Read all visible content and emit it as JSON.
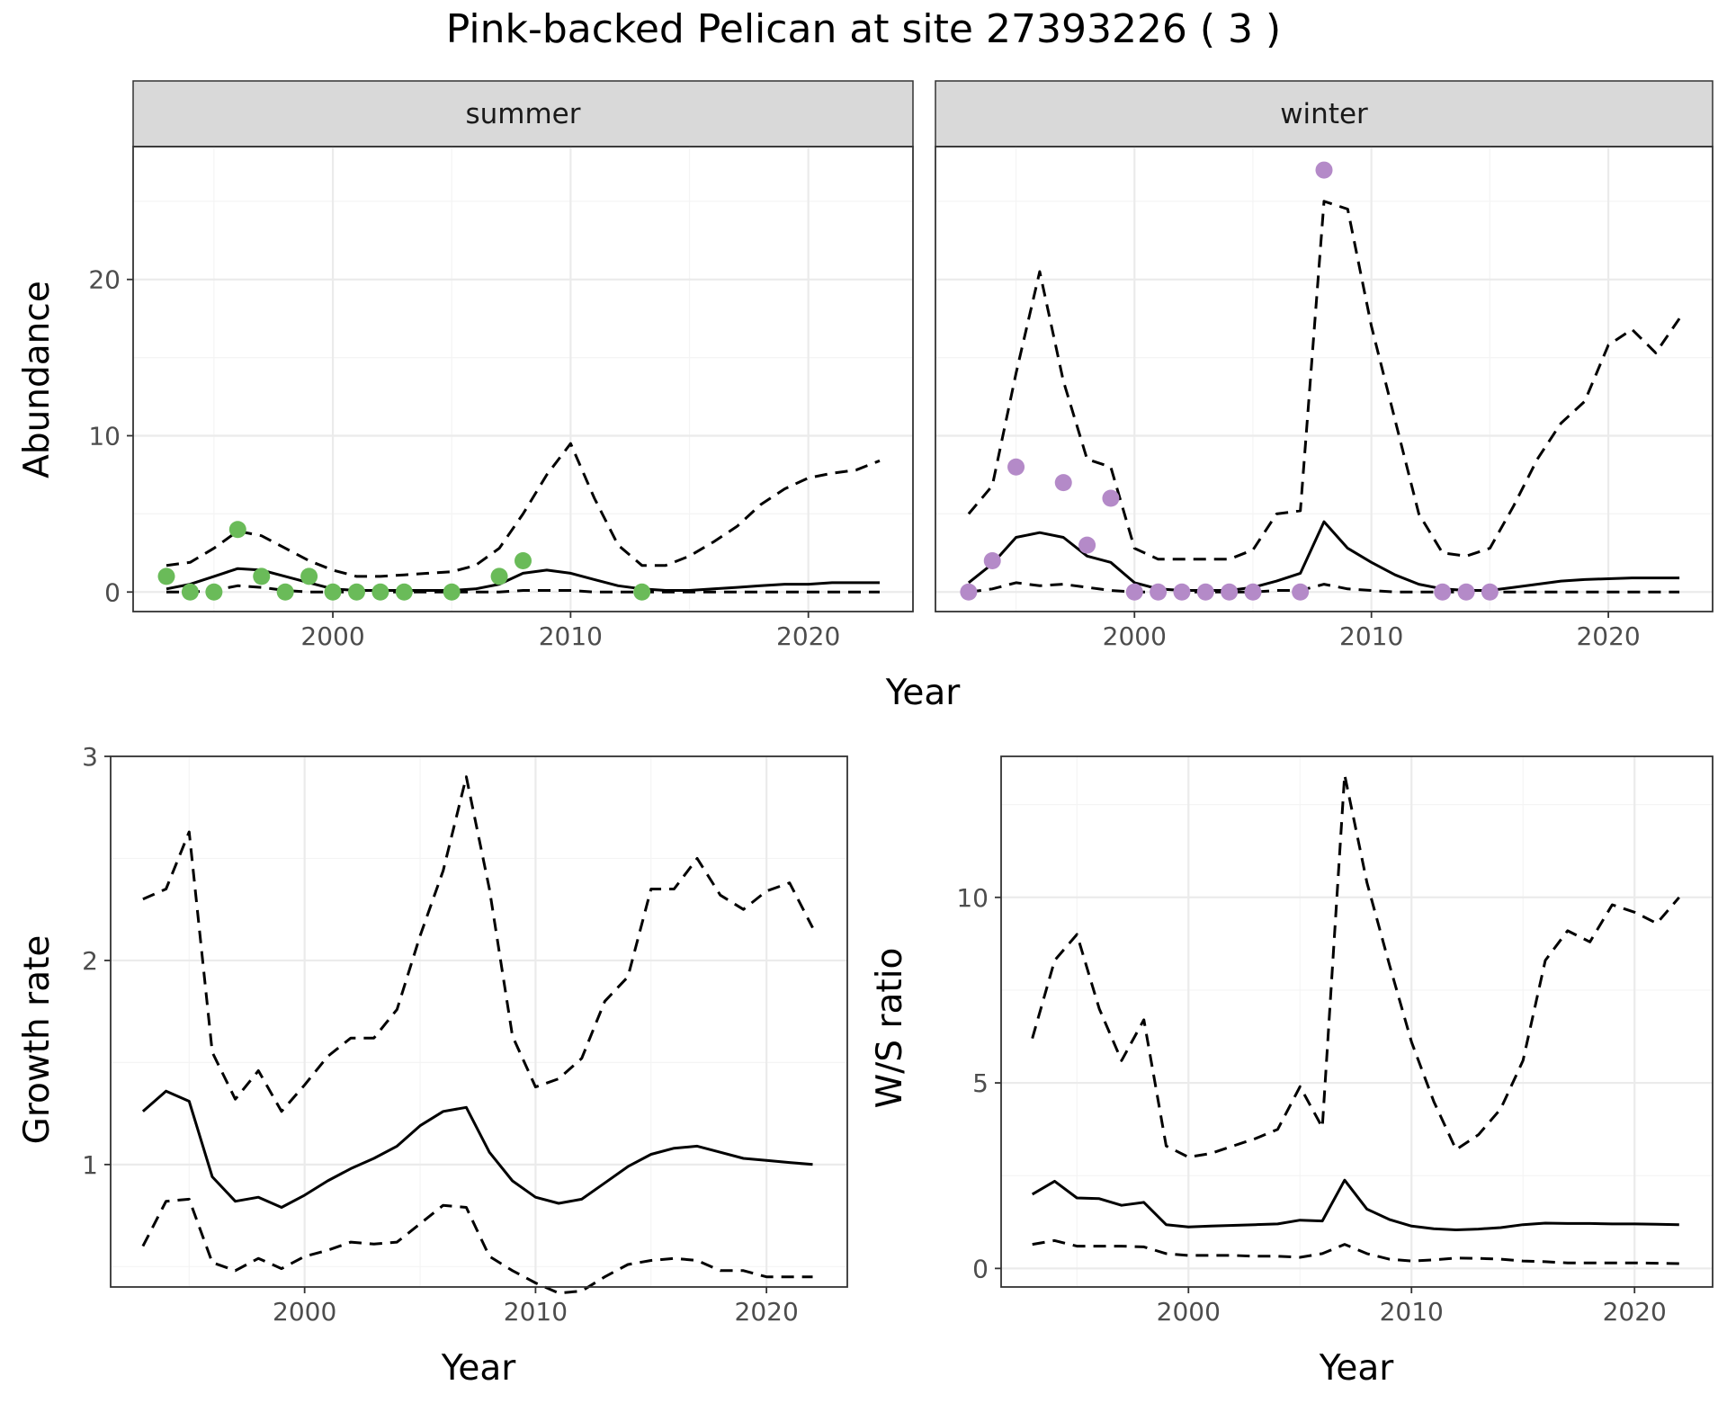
{
  "title": "Pink-backed Pelican at site 27393226 ( 3 )",
  "colors": {
    "summer_points": "#6ABB59",
    "winter_points": "#B48AC8",
    "lines": "#000000",
    "strip_bg": "#D9D9D9",
    "grid_major": "#EBEBEB",
    "grid_minor": "#F4F4F4"
  },
  "chart_data": [
    {
      "type": "line",
      "panel": "summer",
      "strip_label": "summer",
      "xlabel": "Year",
      "ylabel": "Abundance",
      "xlim": [
        1991.6,
        2024.4
      ],
      "ylim": [
        -1.25,
        28.5
      ],
      "xticks": [
        2000,
        2010,
        2020
      ],
      "yticks": [
        0,
        10,
        20
      ],
      "x": [
        1993,
        1994,
        1995,
        1996,
        1997,
        1998,
        1999,
        2000,
        2001,
        2002,
        2003,
        2004,
        2005,
        2006,
        2007,
        2008,
        2009,
        2010,
        2011,
        2012,
        2013,
        2014,
        2015,
        2016,
        2017,
        2018,
        2019,
        2020,
        2021,
        2022,
        2023
      ],
      "series": [
        {
          "style": "solid",
          "values": [
            0.2,
            0.5,
            1.0,
            1.5,
            1.4,
            1.0,
            0.6,
            0.2,
            0.1,
            0.1,
            0.1,
            0.1,
            0.1,
            0.2,
            0.5,
            1.2,
            1.4,
            1.2,
            0.8,
            0.4,
            0.2,
            0.1,
            0.1,
            0.2,
            0.3,
            0.4,
            0.5,
            0.5,
            0.6,
            0.6,
            0.6
          ]
        },
        {
          "style": "dashed",
          "values": [
            1.7,
            1.9,
            2.8,
            3.9,
            3.6,
            2.8,
            2.0,
            1.4,
            1.0,
            1.0,
            1.1,
            1.2,
            1.3,
            1.7,
            2.8,
            5.0,
            7.5,
            9.5,
            6.0,
            3.0,
            1.7,
            1.7,
            2.3,
            3.2,
            4.2,
            5.6,
            6.6,
            7.3,
            7.6,
            7.8,
            8.4
          ]
        },
        {
          "style": "dashed",
          "values": [
            0.0,
            0.0,
            0.1,
            0.4,
            0.3,
            0.1,
            0.0,
            0.0,
            0.0,
            0.0,
            0.0,
            0.0,
            0.0,
            0.0,
            0.0,
            0.1,
            0.1,
            0.1,
            0.0,
            0.0,
            0.0,
            0.0,
            0.0,
            0.0,
            0.0,
            0.0,
            0.0,
            0.0,
            0.0,
            0.0,
            0.0
          ]
        }
      ],
      "points": {
        "x": [
          1993,
          1994,
          1995,
          1996,
          1997,
          1998,
          1999,
          2000,
          2001,
          2002,
          2003,
          2005,
          2007,
          2008,
          2013
        ],
        "y": [
          1,
          0,
          0,
          4,
          1,
          0,
          1,
          0,
          0,
          0,
          0,
          0,
          1,
          2,
          0
        ]
      },
      "grid": true
    },
    {
      "type": "line",
      "panel": "winter",
      "strip_label": "winter",
      "xlabel": "Year",
      "ylabel": "Abundance",
      "xlim": [
        1991.6,
        2024.4
      ],
      "ylim": [
        -1.25,
        28.5
      ],
      "xticks": [
        2000,
        2010,
        2020
      ],
      "yticks": [
        0,
        10,
        20
      ],
      "x": [
        1993,
        1994,
        1995,
        1996,
        1997,
        1998,
        1999,
        2000,
        2001,
        2002,
        2003,
        2004,
        2005,
        2006,
        2007,
        2008,
        2009,
        2010,
        2011,
        2012,
        2013,
        2014,
        2015,
        2016,
        2017,
        2018,
        2019,
        2020,
        2021,
        2022,
        2023
      ],
      "series": [
        {
          "style": "solid",
          "values": [
            0.6,
            1.8,
            3.5,
            3.8,
            3.5,
            2.3,
            1.9,
            0.6,
            0.2,
            0.1,
            0.1,
            0.1,
            0.3,
            0.7,
            1.2,
            4.5,
            2.8,
            1.9,
            1.1,
            0.5,
            0.2,
            0.1,
            0.1,
            0.3,
            0.5,
            0.7,
            0.8,
            0.85,
            0.9,
            0.9,
            0.9
          ]
        },
        {
          "style": "dashed",
          "values": [
            5.0,
            6.8,
            14.0,
            20.5,
            13.5,
            8.5,
            8.0,
            2.8,
            2.1,
            2.1,
            2.1,
            2.1,
            2.7,
            5.0,
            5.2,
            25.0,
            24.5,
            17.0,
            11.0,
            5.0,
            2.5,
            2.3,
            2.8,
            5.5,
            8.5,
            10.8,
            12.2,
            15.8,
            16.8,
            15.3,
            17.5
          ]
        },
        {
          "style": "dashed",
          "values": [
            0.0,
            0.2,
            0.6,
            0.4,
            0.5,
            0.3,
            0.1,
            0.0,
            0.0,
            0.0,
            0.0,
            0.0,
            0.0,
            0.1,
            0.1,
            0.5,
            0.2,
            0.1,
            0.0,
            0.0,
            0.0,
            0.0,
            0.0,
            0.0,
            0.0,
            0.0,
            0.0,
            0.0,
            0.0,
            0.0,
            0.0
          ]
        }
      ],
      "points": {
        "x": [
          1993,
          1994,
          1995,
          1997,
          1998,
          1999,
          2000,
          2001,
          2002,
          2003,
          2004,
          2005,
          2007,
          2008,
          2013,
          2014,
          2015
        ],
        "y": [
          0,
          2,
          8,
          7,
          3,
          6,
          0,
          0,
          0,
          0,
          0,
          0,
          0,
          27,
          0,
          0,
          0
        ]
      },
      "grid": true
    },
    {
      "type": "line",
      "panel": "growth",
      "xlabel": "Year",
      "ylabel": "Growth rate",
      "xlim": [
        1991.6,
        2023.5
      ],
      "ylim": [
        0.4,
        3.0
      ],
      "xticks": [
        2000,
        2010,
        2020
      ],
      "yticks": [
        1,
        2,
        3
      ],
      "x": [
        1993,
        1994,
        1995,
        1996,
        1997,
        1998,
        1999,
        2000,
        2001,
        2002,
        2003,
        2004,
        2005,
        2006,
        2007,
        2008,
        2009,
        2010,
        2011,
        2012,
        2013,
        2014,
        2015,
        2016,
        2017,
        2018,
        2019,
        2020,
        2021,
        2022
      ],
      "series": [
        {
          "style": "solid",
          "values": [
            1.26,
            1.36,
            1.31,
            0.94,
            0.82,
            0.84,
            0.79,
            0.85,
            0.92,
            0.98,
            1.03,
            1.09,
            1.19,
            1.26,
            1.28,
            1.06,
            0.92,
            0.84,
            0.81,
            0.83,
            0.91,
            0.99,
            1.05,
            1.08,
            1.09,
            1.06,
            1.03,
            1.02,
            1.01,
            1.0
          ]
        },
        {
          "style": "dashed",
          "values": [
            2.3,
            2.35,
            2.63,
            1.55,
            1.32,
            1.46,
            1.26,
            1.39,
            1.53,
            1.62,
            1.62,
            1.76,
            2.12,
            2.44,
            2.9,
            2.35,
            1.63,
            1.38,
            1.42,
            1.52,
            1.8,
            1.92,
            2.35,
            2.35,
            2.5,
            2.32,
            2.25,
            2.34,
            2.38,
            2.16
          ]
        },
        {
          "style": "dashed",
          "values": [
            0.6,
            0.82,
            0.83,
            0.52,
            0.48,
            0.54,
            0.49,
            0.55,
            0.58,
            0.62,
            0.61,
            0.62,
            0.71,
            0.8,
            0.79,
            0.55,
            0.48,
            0.42,
            0.37,
            0.38,
            0.45,
            0.51,
            0.53,
            0.54,
            0.53,
            0.48,
            0.48,
            0.45,
            0.45,
            0.45
          ]
        }
      ],
      "grid": true
    },
    {
      "type": "line",
      "panel": "ws_ratio",
      "xlabel": "Year",
      "ylabel": "W/S ratio",
      "xlim": [
        1991.6,
        2023.5
      ],
      "ylim": [
        -0.5,
        13.8
      ],
      "xticks": [
        2000,
        2010,
        2020
      ],
      "yticks": [
        0,
        5,
        10
      ],
      "x": [
        1993,
        1994,
        1995,
        1996,
        1997,
        1998,
        1999,
        2000,
        2001,
        2002,
        2003,
        2004,
        2005,
        2006,
        2007,
        2008,
        2009,
        2010,
        2011,
        2012,
        2013,
        2014,
        2015,
        2016,
        2017,
        2018,
        2019,
        2020,
        2021,
        2022
      ],
      "series": [
        {
          "style": "solid",
          "values": [
            2.0,
            2.35,
            1.9,
            1.88,
            1.7,
            1.78,
            1.18,
            1.12,
            1.14,
            1.16,
            1.18,
            1.2,
            1.3,
            1.28,
            2.38,
            1.6,
            1.32,
            1.14,
            1.07,
            1.04,
            1.06,
            1.1,
            1.18,
            1.22,
            1.21,
            1.21,
            1.2,
            1.2,
            1.19,
            1.18
          ]
        },
        {
          "style": "dashed",
          "values": [
            6.2,
            8.3,
            9.0,
            7.0,
            5.6,
            6.7,
            3.3,
            3.0,
            3.1,
            3.3,
            3.5,
            3.75,
            4.9,
            3.8,
            13.3,
            10.4,
            8.2,
            6.1,
            4.5,
            3.2,
            3.6,
            4.3,
            5.6,
            8.3,
            9.1,
            8.8,
            9.8,
            9.6,
            9.3,
            10.0
          ]
        },
        {
          "style": "dashed",
          "values": [
            0.65,
            0.75,
            0.6,
            0.6,
            0.6,
            0.58,
            0.4,
            0.35,
            0.35,
            0.35,
            0.33,
            0.33,
            0.3,
            0.4,
            0.65,
            0.4,
            0.25,
            0.2,
            0.23,
            0.28,
            0.27,
            0.25,
            0.2,
            0.18,
            0.15,
            0.15,
            0.15,
            0.15,
            0.14,
            0.13
          ]
        }
      ],
      "grid": true
    }
  ]
}
